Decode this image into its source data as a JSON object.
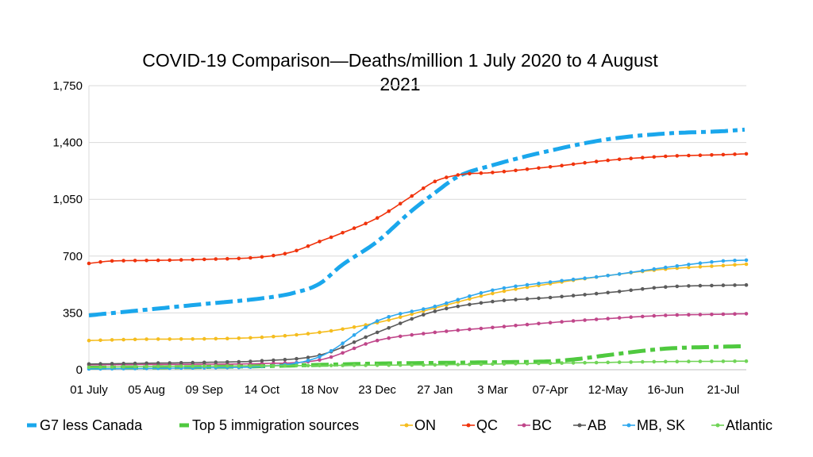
{
  "chart_data": {
    "type": "line",
    "title_lines": [
      "COVID-19 Comparison—Deaths/million 1 July 2020 to 4 August",
      "2021"
    ],
    "xlabel": "",
    "ylabel": "",
    "ylim": [
      0,
      1750
    ],
    "yticks": [
      0,
      350,
      700,
      1050,
      1400,
      1750
    ],
    "ytick_labels": [
      "0",
      "350",
      "700",
      "1,050",
      "1,400",
      "1,750"
    ],
    "xlim": [
      "2020-07-01",
      "2021-08-04"
    ],
    "x_tick_dates": [
      "2020-07-01",
      "2020-08-05",
      "2020-09-09",
      "2020-10-14",
      "2020-11-18",
      "2020-12-23",
      "2021-01-27",
      "2021-03-03",
      "2021-04-07",
      "2021-05-12",
      "2021-06-16",
      "2021-07-21"
    ],
    "x_tick_labels": [
      "01 July",
      "05 Aug",
      "09 Sep",
      "14 Oct",
      "18 Nov",
      "23 Dec",
      "27 Jan",
      "3 Mar",
      "07-Apr",
      "12-May",
      "16-Jun",
      "21-Jul"
    ],
    "grid": "horizontal",
    "legend_position": "bottom",
    "series": [
      {
        "name": "G7 less Canada",
        "color": "#1aa7ec",
        "style": "dashdot-thick",
        "x": [
          "2020-07-01",
          "2020-08-05",
          "2020-09-09",
          "2020-10-14",
          "2020-11-01",
          "2020-11-18",
          "2020-12-01",
          "2020-12-23",
          "2021-01-13",
          "2021-01-27",
          "2021-02-10",
          "2021-03-03",
          "2021-04-07",
          "2021-05-12",
          "2021-06-16",
          "2021-07-21",
          "2021-08-04"
        ],
        "y": [
          335,
          370,
          405,
          440,
          470,
          530,
          640,
          790,
          980,
          1090,
          1190,
          1260,
          1350,
          1420,
          1455,
          1470,
          1480
        ]
      },
      {
        "name": "Top 5 immigration sources",
        "color": "#4fc93f",
        "style": "dashdot-thick",
        "x": [
          "2020-07-01",
          "2020-08-05",
          "2020-09-09",
          "2020-10-14",
          "2020-11-18",
          "2020-12-23",
          "2021-01-27",
          "2021-03-03",
          "2021-04-07",
          "2021-04-20",
          "2021-05-12",
          "2021-06-01",
          "2021-06-16",
          "2021-07-21",
          "2021-08-04"
        ],
        "y": [
          12,
          14,
          17,
          22,
          30,
          38,
          42,
          46,
          52,
          62,
          90,
          115,
          130,
          142,
          145
        ]
      },
      {
        "name": "ON",
        "color": "#f5bd1f",
        "style": "line-dots",
        "x": [
          "2020-07-01",
          "2020-08-05",
          "2020-09-09",
          "2020-10-14",
          "2020-11-18",
          "2020-12-23",
          "2021-01-27",
          "2021-03-03",
          "2021-04-07",
          "2021-05-12",
          "2021-06-16",
          "2021-07-21",
          "2021-08-04"
        ],
        "y": [
          180,
          188,
          190,
          200,
          230,
          290,
          380,
          470,
          530,
          580,
          620,
          642,
          650
        ]
      },
      {
        "name": "QC",
        "color": "#f0330c",
        "style": "line-dots",
        "x": [
          "2020-07-01",
          "2020-07-15",
          "2020-08-05",
          "2020-09-09",
          "2020-10-14",
          "2020-11-01",
          "2020-11-18",
          "2020-12-01",
          "2020-12-23",
          "2021-01-13",
          "2021-01-27",
          "2021-02-10",
          "2021-03-03",
          "2021-04-07",
          "2021-05-12",
          "2021-06-16",
          "2021-07-21",
          "2021-08-04"
        ],
        "y": [
          655,
          670,
          673,
          680,
          695,
          725,
          790,
          840,
          935,
          1070,
          1160,
          1200,
          1215,
          1250,
          1290,
          1315,
          1325,
          1330
        ]
      },
      {
        "name": "BC",
        "color": "#c0468a",
        "style": "line-dots",
        "x": [
          "2020-07-01",
          "2020-08-05",
          "2020-09-09",
          "2020-10-14",
          "2020-11-18",
          "2020-12-23",
          "2021-01-27",
          "2021-03-03",
          "2021-04-07",
          "2021-05-12",
          "2021-06-16",
          "2021-07-21",
          "2021-08-04"
        ],
        "y": [
          30,
          32,
          34,
          38,
          60,
          180,
          230,
          260,
          290,
          315,
          335,
          342,
          345
        ]
      },
      {
        "name": "AB",
        "color": "#5b5b5b",
        "style": "line-dots",
        "x": [
          "2020-07-01",
          "2020-08-05",
          "2020-09-09",
          "2020-10-14",
          "2020-11-18",
          "2020-12-23",
          "2021-01-27",
          "2021-03-03",
          "2021-04-07",
          "2021-05-12",
          "2021-06-16",
          "2021-07-21",
          "2021-08-04"
        ],
        "y": [
          35,
          40,
          45,
          55,
          90,
          230,
          360,
          420,
          445,
          475,
          510,
          520,
          522
        ]
      },
      {
        "name": "MB, SK",
        "color": "#2fa8ee",
        "style": "line-dots",
        "x": [
          "2020-07-01",
          "2020-08-05",
          "2020-09-09",
          "2020-10-14",
          "2020-11-18",
          "2020-12-23",
          "2021-01-27",
          "2021-03-03",
          "2021-04-07",
          "2021-05-12",
          "2021-06-16",
          "2021-07-21",
          "2021-08-04"
        ],
        "y": [
          5,
          8,
          12,
          20,
          80,
          300,
          390,
          490,
          540,
          580,
          630,
          670,
          675
        ]
      },
      {
        "name": "Atlantic",
        "color": "#70d457",
        "style": "line-dots",
        "x": [
          "2020-07-01",
          "2020-08-05",
          "2020-09-09",
          "2020-10-14",
          "2020-11-18",
          "2020-12-23",
          "2021-01-27",
          "2021-03-03",
          "2021-04-07",
          "2021-05-12",
          "2021-06-16",
          "2021-07-21",
          "2021-08-04"
        ],
        "y": [
          15,
          20,
          22,
          24,
          26,
          28,
          30,
          35,
          40,
          45,
          50,
          52,
          53
        ]
      }
    ]
  }
}
